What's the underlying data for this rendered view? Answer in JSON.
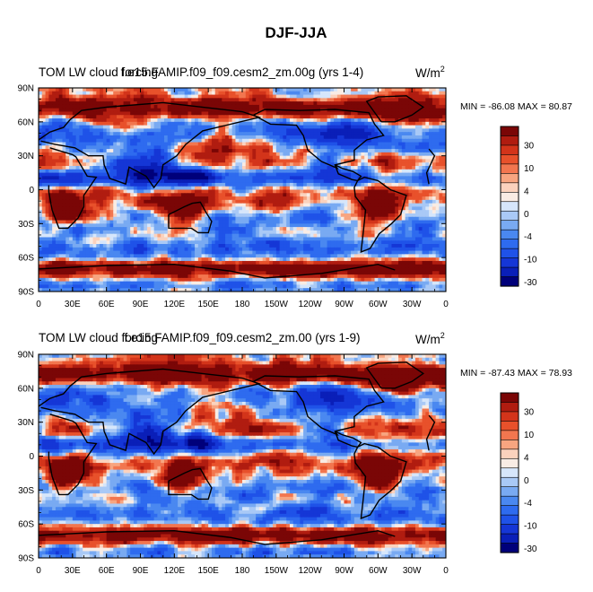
{
  "page_title": "DJF-JJA",
  "palette": [
    "#00007a",
    "#0a1fb8",
    "#1536d6",
    "#1f52e8",
    "#2e6bef",
    "#4a88f0",
    "#79aaf2",
    "#a9c9f6",
    "#d6e6fb",
    "#f9ece4",
    "#fbd2bd",
    "#f7a580",
    "#f2764f",
    "#e8512b",
    "#d3341a",
    "#b01c10",
    "#7a0606"
  ],
  "colorbar_labels": [
    "30",
    "10",
    "4",
    "0",
    "-4",
    "-10",
    "-30"
  ],
  "land_color": "#000000",
  "chart_data": [
    {
      "type": "heatmap",
      "title_left": "TOM LW cloud forcing",
      "title_center": "f.e15.FAMIP.f09_f09.cesm2_zm.00g (yrs 1-4)",
      "units": "W/m",
      "units_sup": "2",
      "stats": "MIN = -86.08 MAX =  80.87",
      "min": -86.08,
      "max": 80.87,
      "xticks": [
        "0",
        "30E",
        "60E",
        "90E",
        "120E",
        "150E",
        "180",
        "150W",
        "120W",
        "90W",
        "60W",
        "30W",
        "0"
      ],
      "yticks": [
        "90N",
        "60N",
        "30N",
        "0",
        "30S",
        "60S",
        "90S"
      ],
      "xlim": [
        0,
        360
      ],
      "ylim": [
        -90,
        90
      ],
      "levels": [
        -40,
        -30,
        -20,
        -15,
        -10,
        -7,
        -4,
        -2,
        -1,
        0,
        1,
        2,
        4,
        7,
        10,
        15,
        20,
        30,
        40
      ]
    },
    {
      "type": "heatmap",
      "title_left": "TOM LW cloud forcing",
      "title_center": "f.e15.FAMIP.f09_f09.cesm2_zm.00 (yrs 1-9)",
      "units": "W/m",
      "units_sup": "2",
      "stats": "MIN = -87.43 MAX =  78.93",
      "min": -87.43,
      "max": 78.93,
      "xticks": [
        "0",
        "30E",
        "60E",
        "90E",
        "120E",
        "150E",
        "180",
        "150W",
        "120W",
        "90W",
        "60W",
        "30W",
        "0"
      ],
      "yticks": [
        "90N",
        "60N",
        "30N",
        "0",
        "30S",
        "60S",
        "90S"
      ],
      "xlim": [
        0,
        360
      ],
      "ylim": [
        -90,
        90
      ],
      "levels": [
        -40,
        -30,
        -20,
        -15,
        -10,
        -7,
        -4,
        -2,
        -1,
        0,
        1,
        2,
        4,
        7,
        10,
        15,
        20,
        30,
        40
      ]
    }
  ]
}
